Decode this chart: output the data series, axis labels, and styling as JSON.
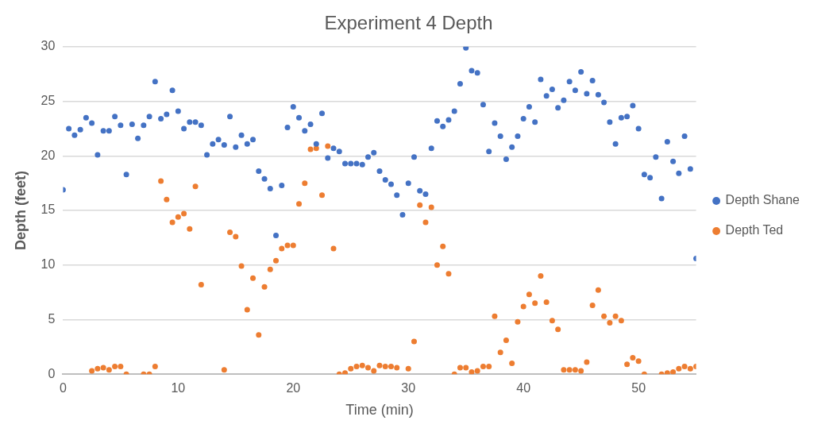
{
  "chart_data": {
    "type": "scatter",
    "title": "Experiment 4 Depth",
    "xlabel": "Time (min)",
    "ylabel": "Depth (feet)",
    "xlim": [
      0,
      55
    ],
    "xticks": [
      0,
      10,
      20,
      30,
      40,
      50
    ],
    "ylim": [
      0,
      30
    ],
    "yticks": [
      0,
      5,
      10,
      15,
      20,
      25,
      30
    ],
    "grid": "y",
    "legend": "right",
    "marker": "circle",
    "series": [
      {
        "name": "Depth Shane",
        "color": "#4472c4",
        "x": [
          0,
          0.5,
          1,
          1.5,
          2,
          2.5,
          3,
          3.5,
          4,
          4.5,
          5,
          5.5,
          6,
          6.5,
          7,
          7.5,
          8,
          8.5,
          9,
          9.5,
          10,
          10.5,
          11,
          11.5,
          12,
          12.5,
          13,
          13.5,
          14,
          14.5,
          15,
          15.5,
          16,
          16.5,
          17,
          17.5,
          18,
          18.5,
          19,
          19.5,
          20,
          20.5,
          21,
          21.5,
          22,
          22.5,
          23,
          23.5,
          24,
          24.5,
          25,
          25.5,
          26,
          26.5,
          27,
          27.5,
          28,
          28.5,
          29,
          29.5,
          30,
          30.5,
          31,
          31.5,
          32,
          32.5,
          33,
          33.5,
          34,
          34.5,
          35,
          35.5,
          36,
          36.5,
          37,
          37.5,
          38,
          38.5,
          39,
          39.5,
          40,
          40.5,
          41,
          41.5,
          42,
          42.5,
          43,
          43.5,
          44,
          44.5,
          45,
          45.5,
          46,
          46.5,
          47,
          47.5,
          48,
          48.5,
          49,
          49.5,
          50,
          50.5,
          51,
          51.5,
          52,
          52.5,
          53,
          53.5,
          54,
          54.5,
          55
        ],
        "values": [
          16.9,
          22.5,
          21.9,
          22.4,
          23.5,
          23.0,
          20.1,
          22.3,
          22.3,
          23.6,
          22.8,
          18.3,
          22.9,
          21.6,
          22.8,
          23.6,
          26.8,
          23.4,
          23.8,
          26.0,
          24.1,
          22.5,
          23.1,
          23.1,
          22.8,
          20.1,
          21.1,
          21.5,
          21.0,
          23.6,
          20.8,
          21.9,
          21.1,
          21.5,
          18.6,
          17.9,
          17.0,
          12.7,
          17.3,
          22.6,
          24.5,
          23.5,
          22.3,
          22.9,
          21.1,
          23.9,
          19.8,
          20.7,
          20.4,
          19.3,
          19.3,
          19.3,
          19.2,
          19.9,
          20.3,
          18.6,
          17.8,
          17.4,
          16.4,
          14.6,
          17.5,
          19.9,
          16.8,
          16.5,
          20.7,
          23.2,
          22.7,
          23.3,
          24.1,
          26.6,
          29.9,
          27.8,
          27.6,
          24.7,
          20.4,
          23.0,
          21.8,
          19.7,
          20.8,
          21.8,
          23.4,
          24.5,
          23.1,
          27.0,
          25.5,
          26.1,
          24.4,
          25.1,
          26.8,
          26.0,
          27.7,
          25.7,
          26.9,
          25.6,
          24.9,
          23.1,
          21.1,
          23.5,
          23.6,
          24.6,
          22.5,
          18.3,
          18.0,
          19.9,
          16.1,
          21.3,
          19.5,
          18.4,
          21.8,
          18.8,
          10.6
        ]
      },
      {
        "name": "Depth Ted",
        "color": "#ed7d31",
        "x": [
          2.5,
          3,
          3.5,
          4,
          4.5,
          5,
          5.5,
          7,
          7.5,
          8,
          8.5,
          9,
          9.5,
          10,
          10.5,
          11,
          11.5,
          12,
          14,
          14.5,
          15,
          15.5,
          16,
          16.5,
          17,
          17.5,
          18,
          18.5,
          19,
          19.5,
          20,
          20.5,
          21,
          21.5,
          22,
          22.5,
          23,
          23.5,
          24,
          24.5,
          25,
          25.5,
          26,
          26.5,
          27,
          27.5,
          28,
          28.5,
          29,
          30,
          30.5,
          31,
          31.5,
          32,
          32.5,
          33,
          33.5,
          34,
          34.5,
          35,
          35.5,
          36,
          36.5,
          37,
          37.5,
          38,
          38.5,
          39,
          39.5,
          40,
          40.5,
          41,
          41.5,
          42,
          42.5,
          43,
          43.5,
          44,
          44.5,
          45,
          45.5,
          46,
          46.5,
          47,
          47.5,
          48,
          48.5,
          49,
          49.5,
          50,
          50.5,
          52,
          52.5,
          53,
          53.5,
          54,
          54.5,
          55
        ],
        "values": [
          0.3,
          0.5,
          0.6,
          0.4,
          0.7,
          0.7,
          0.0,
          0.0,
          0.0,
          0.7,
          17.7,
          16.0,
          13.9,
          14.4,
          14.7,
          13.3,
          17.2,
          8.2,
          0.4,
          13.0,
          12.6,
          9.9,
          5.9,
          8.8,
          3.6,
          8.0,
          9.6,
          10.4,
          11.5,
          11.8,
          11.8,
          15.6,
          17.5,
          20.6,
          20.7,
          16.4,
          20.9,
          11.5,
          0.0,
          0.1,
          0.5,
          0.7,
          0.8,
          0.6,
          0.3,
          0.8,
          0.7,
          0.7,
          0.6,
          0.5,
          3.0,
          15.5,
          13.9,
          15.3,
          10.0,
          11.7,
          9.2,
          0.0,
          0.6,
          0.6,
          0.2,
          0.3,
          0.7,
          0.7,
          5.3,
          2.0,
          3.1,
          1.0,
          4.8,
          6.2,
          7.3,
          6.5,
          9.0,
          6.6,
          4.9,
          4.1,
          0.4,
          0.4,
          0.4,
          0.3,
          1.1,
          6.3,
          7.7,
          5.3,
          4.7,
          5.3,
          4.9,
          0.9,
          1.5,
          1.2,
          0.0,
          0.0,
          0.1,
          0.2,
          0.5,
          0.7,
          0.5,
          0.7
        ]
      }
    ]
  }
}
